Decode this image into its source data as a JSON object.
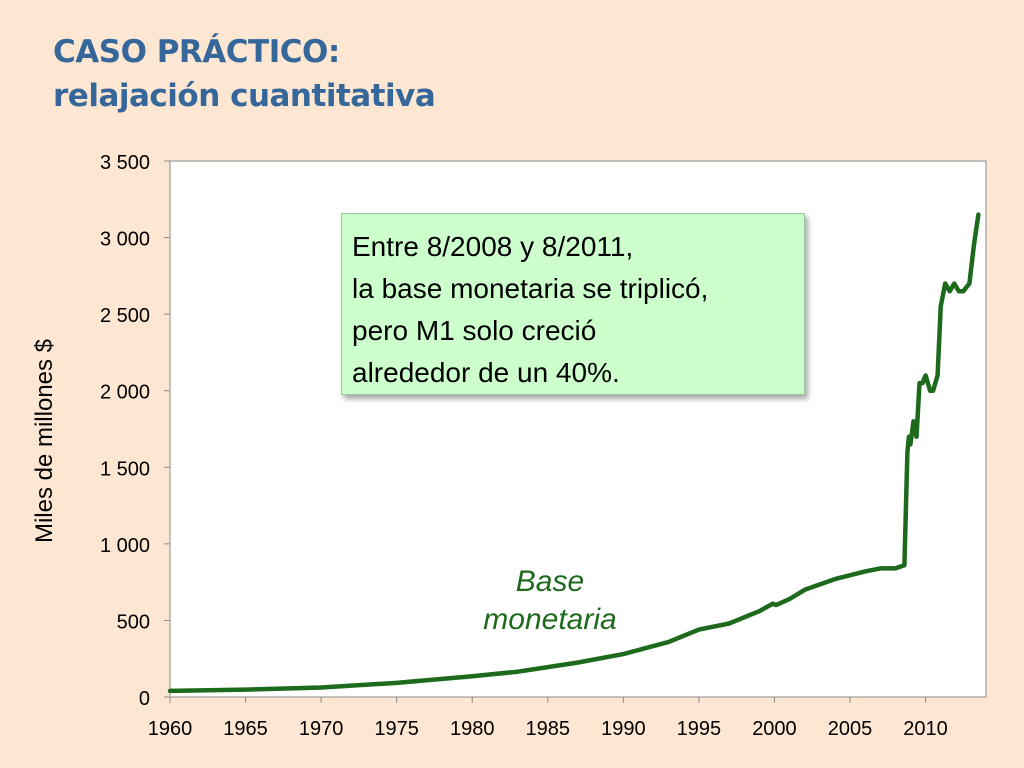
{
  "slide": {
    "title_line1": "CASO PRÁCTICO:",
    "title_line2": "relajación cuantitativa"
  },
  "callout": {
    "lines": [
      "Entre 8/2008 y 8/2011,",
      "la base monetaria se triplicó,",
      "pero M1 solo creció",
      "alrededor de un 40%."
    ]
  },
  "chart_data": {
    "type": "line",
    "title": "",
    "xlabel": "",
    "ylabel": "Miles de millones $",
    "xlim": [
      1960,
      2014
    ],
    "ylim": [
      0,
      3500
    ],
    "grid": false,
    "x_ticks": [
      "1960",
      "1965",
      "1970",
      "1975",
      "1980",
      "1985",
      "1990",
      "1995",
      "2000",
      "2005",
      "2010"
    ],
    "y_ticks": [
      "0",
      "500",
      "1 000",
      "1 500",
      "2 000",
      "2 500",
      "3 000",
      "3 500"
    ],
    "series": [
      {
        "name": "Base monetaria",
        "color": "#1d6a1d",
        "x": [
          1960,
          1965,
          1970,
          1975,
          1980,
          1983,
          1985,
          1987,
          1990,
          1993,
          1995,
          1997,
          1999,
          1999.9,
          2000.1,
          2001,
          2002,
          2004,
          2006,
          2007,
          2008.0,
          2008.6,
          2008.8,
          2008.9,
          2009.0,
          2009.2,
          2009.4,
          2009.6,
          2009.8,
          2010.0,
          2010.3,
          2010.5,
          2010.8,
          2011.0,
          2011.3,
          2011.6,
          2011.9,
          2012.2,
          2012.5,
          2012.9,
          2013.2,
          2013.5
        ],
        "y": [
          40,
          48,
          62,
          92,
          135,
          165,
          195,
          225,
          280,
          360,
          440,
          480,
          560,
          610,
          600,
          640,
          700,
          770,
          820,
          840,
          840,
          860,
          1600,
          1700,
          1650,
          1800,
          1700,
          2050,
          2050,
          2100,
          2000,
          2000,
          2100,
          2550,
          2700,
          2650,
          2700,
          2650,
          2650,
          2700,
          2950,
          3150
        ]
      }
    ],
    "annotations": [
      "Base",
      "monetaria"
    ]
  }
}
